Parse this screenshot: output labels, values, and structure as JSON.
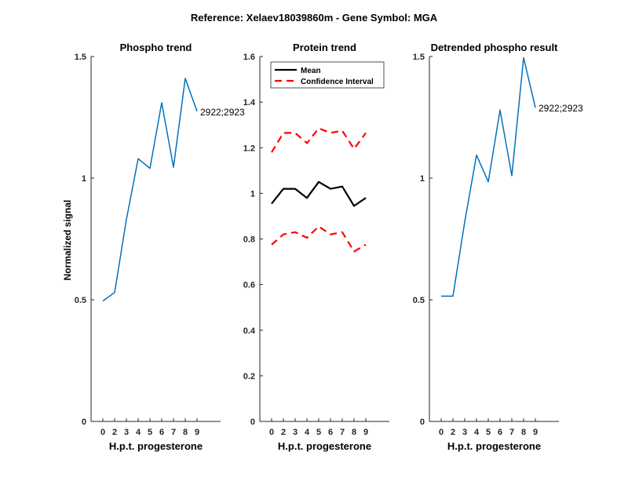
{
  "figure": {
    "suptitle": "Reference:  Xelaev18039860m - Gene Symbol:  MGA",
    "ylabel": "Normalized signal"
  },
  "colors": {
    "blue": "#0072BD",
    "black": "#000000",
    "red": "#FF0000"
  },
  "chart_data": [
    {
      "type": "line",
      "title": "Phospho trend",
      "xlabel": "H.p.t. progesterone",
      "ylabel": "Normalized signal",
      "xlim": [
        -1,
        10
      ],
      "ylim": [
        0,
        1.5
      ],
      "xticks": [
        0,
        2,
        3,
        4,
        5,
        6,
        7,
        8,
        9
      ],
      "yticks": [
        0,
        0.5,
        1,
        1.5
      ],
      "yticklabels": [
        "0",
        "0.5",
        "1",
        "1.5"
      ],
      "series": [
        {
          "x": [
            0,
            1,
            2,
            3,
            4,
            5,
            6,
            7,
            8
          ],
          "y": [
            0.495,
            0.53,
            0.83,
            1.08,
            1.04,
            1.31,
            1.045,
            1.41,
            1.275
          ],
          "color": "blue",
          "style": "solid"
        }
      ],
      "annotation": {
        "text": "2922;2923",
        "at_index": 8
      }
    },
    {
      "type": "line",
      "title": "Protein trend",
      "xlabel": "H.p.t. progesterone",
      "xlim": [
        -1,
        10
      ],
      "ylim": [
        0,
        1.6
      ],
      "xticks": [
        0,
        2,
        3,
        4,
        5,
        6,
        7,
        8,
        9
      ],
      "yticks": [
        0,
        0.2,
        0.4,
        0.6,
        0.8,
        1,
        1.2,
        1.4,
        1.6
      ],
      "yticklabels": [
        "0",
        "0.2",
        "0.4",
        "0.6",
        "0.8",
        "1",
        "1.2",
        "1.4",
        "1.6"
      ],
      "legend": {
        "position": "top-left",
        "entries": [
          "Mean",
          "Confidence Interval"
        ]
      },
      "series": [
        {
          "name": "Mean",
          "x": [
            0,
            1,
            2,
            3,
            4,
            5,
            6,
            7,
            8
          ],
          "y": [
            0.955,
            1.02,
            1.02,
            0.98,
            1.05,
            1.02,
            1.03,
            0.945,
            0.98
          ],
          "color": "black",
          "style": "solid"
        },
        {
          "name": "Confidence Interval",
          "x": [
            0,
            1,
            2,
            3,
            4,
            5,
            6,
            7,
            8
          ],
          "y": [
            1.18,
            1.265,
            1.265,
            1.22,
            1.285,
            1.265,
            1.275,
            1.195,
            1.265
          ],
          "color": "red",
          "style": "dashed"
        },
        {
          "x": [
            0,
            1,
            2,
            3,
            4,
            5,
            6,
            7,
            8
          ],
          "y": [
            0.775,
            0.82,
            0.83,
            0.805,
            0.855,
            0.82,
            0.83,
            0.745,
            0.775
          ],
          "color": "red",
          "style": "dashed"
        }
      ]
    },
    {
      "type": "line",
      "title": "Detrended phospho result",
      "xlabel": "H.p.t. progesterone",
      "xlim": [
        -1,
        10
      ],
      "ylim": [
        0,
        1.5
      ],
      "xticks": [
        0,
        2,
        3,
        4,
        5,
        6,
        7,
        8,
        9
      ],
      "yticks": [
        0,
        0.5,
        1,
        1.5
      ],
      "yticklabels": [
        "0",
        "0.5",
        "1",
        "1.5"
      ],
      "series": [
        {
          "x": [
            0,
            1,
            2,
            3,
            4,
            5,
            6,
            7,
            8
          ],
          "y": [
            0.515,
            0.515,
            0.82,
            1.095,
            0.985,
            1.28,
            1.01,
            1.495,
            1.29
          ],
          "color": "blue",
          "style": "solid"
        }
      ],
      "annotation": {
        "text": "2922;2923",
        "at_index": 8
      }
    }
  ]
}
